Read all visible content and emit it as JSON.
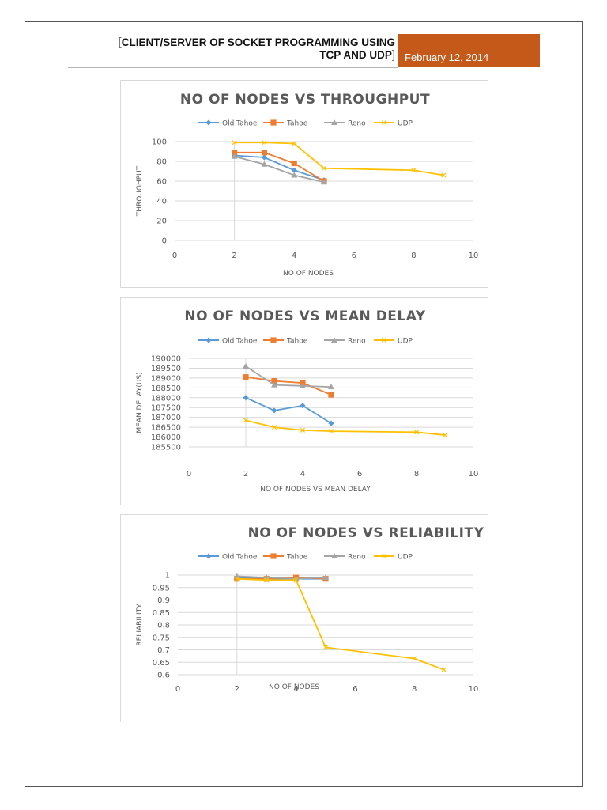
{
  "header": {
    "bracket_open": "[",
    "title_line1": "CLIENT/SERVER OF SOCKET PROGRAMMING USING",
    "title_line2": "TCP AND UDP",
    "bracket_close": "]",
    "date": "February 12, 2014"
  },
  "colors": {
    "old_tahoe": "#5b9bd5",
    "tahoe": "#ed7d31",
    "reno": "#a5a5a5",
    "udp": "#ffc000",
    "title": "#595959",
    "axis_text": "#595959",
    "grid": "#d9d9d9",
    "date_box": "#c4591a"
  },
  "chart_data": [
    {
      "type": "scatter",
      "title": "NO OF NODES VS THROUGHPUT",
      "xlabel": "NO OF NODES",
      "ylabel": "THROUGHPUT",
      "xlim": [
        0,
        10
      ],
      "ylim": [
        0,
        100
      ],
      "xticks": [
        "0",
        "2",
        "4",
        "6",
        "8",
        "10"
      ],
      "yticks": [
        "0",
        "20",
        "40",
        "60",
        "80",
        "100"
      ],
      "legend": "top",
      "grid": true,
      "series": [
        {
          "name": "Old Tahoe",
          "marker": "diamond",
          "x": [
            2,
            3,
            4,
            5
          ],
          "y": [
            86,
            84,
            71,
            61
          ]
        },
        {
          "name": "Tahoe",
          "marker": "square",
          "x": [
            2,
            3,
            4,
            5
          ],
          "y": [
            89,
            89,
            78,
            60
          ]
        },
        {
          "name": "Reno",
          "marker": "triangle",
          "x": [
            2,
            3,
            4,
            5
          ],
          "y": [
            85,
            77,
            66,
            59
          ]
        },
        {
          "name": "UDP",
          "marker": "x",
          "x": [
            2,
            3,
            4,
            5,
            8,
            9
          ],
          "y": [
            99,
            99,
            98,
            73,
            71,
            66
          ]
        }
      ]
    },
    {
      "type": "scatter",
      "title": "NO OF NODES VS MEAN DELAY",
      "xlabel": "NO OF NODES VS MEAN DELAY",
      "ylabel": "MEAN DELAY(US)",
      "xlim": [
        0,
        10
      ],
      "ylim": [
        185500,
        190000
      ],
      "xticks": [
        "0",
        "2",
        "4",
        "6",
        "8",
        "10"
      ],
      "yticks": [
        "185500",
        "186000",
        "186500",
        "187000",
        "187500",
        "188000",
        "188500",
        "189000",
        "189500",
        "190000"
      ],
      "legend": "top",
      "grid": true,
      "series": [
        {
          "name": "Old Tahoe",
          "marker": "diamond",
          "x": [
            2,
            3,
            4,
            5
          ],
          "y": [
            188000,
            187350,
            187600,
            186700
          ]
        },
        {
          "name": "Tahoe",
          "marker": "square",
          "x": [
            2,
            3,
            4,
            5
          ],
          "y": [
            189050,
            188850,
            188750,
            188150
          ]
        },
        {
          "name": "Reno",
          "marker": "triangle",
          "x": [
            2,
            3,
            4,
            5
          ],
          "y": [
            189600,
            188650,
            188600,
            188550
          ]
        },
        {
          "name": "UDP",
          "marker": "x",
          "x": [
            2,
            3,
            4,
            5,
            8,
            9
          ],
          "y": [
            186850,
            186500,
            186350,
            186300,
            186250,
            186100
          ]
        }
      ]
    },
    {
      "type": "scatter",
      "title": "NO OF NODES VS RELIABILITY",
      "xlabel": "NO OF NODES",
      "ylabel": "RELIABILITY",
      "xlim": [
        0,
        10
      ],
      "ylim": [
        0.6,
        1
      ],
      "xticks": [
        "0",
        "2",
        "4",
        "6",
        "8",
        "10"
      ],
      "yticks": [
        "0.6",
        "0.65",
        "0.7",
        "0.75",
        "0.8",
        "0.85",
        "0.9",
        "0.95",
        "1"
      ],
      "legend": "top",
      "grid": true,
      "series": [
        {
          "name": "Old Tahoe",
          "marker": "diamond",
          "x": [
            2,
            3,
            4,
            5
          ],
          "y": [
            0.99,
            0.985,
            0.985,
            0.985
          ]
        },
        {
          "name": "Tahoe",
          "marker": "square",
          "x": [
            2,
            3,
            4,
            5
          ],
          "y": [
            0.985,
            0.985,
            0.99,
            0.985
          ]
        },
        {
          "name": "Reno",
          "marker": "triangle",
          "x": [
            2,
            3,
            4,
            5
          ],
          "y": [
            0.995,
            0.99,
            0.985,
            0.99
          ]
        },
        {
          "name": "UDP",
          "marker": "x",
          "x": [
            2,
            3,
            4,
            5,
            8,
            9
          ],
          "y": [
            0.985,
            0.98,
            0.98,
            0.71,
            0.665,
            0.62
          ]
        }
      ]
    }
  ]
}
